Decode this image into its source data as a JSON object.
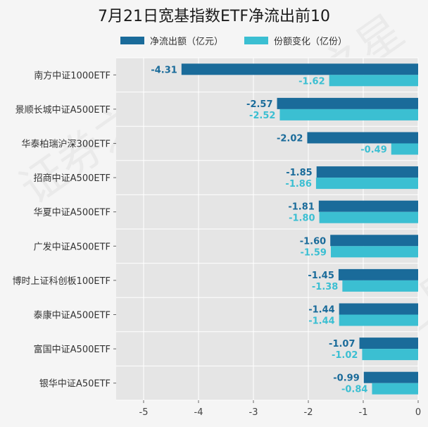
{
  "chart_data": {
    "type": "bar",
    "orientation": "horizontal",
    "title": "7月21日宽基指数ETF净流出前10",
    "categories": [
      "南方中证1000ETF",
      "景顺长城中证A500ETF",
      "华泰柏瑞沪深300ETF",
      "招商中证A500ETF",
      "华夏中证A500ETF",
      "广发中证A500ETF",
      "博时上证科创板100ETF",
      "泰康中证A500ETF",
      "富国中证A500ETF",
      "银华中证A50ETF"
    ],
    "series": [
      {
        "name": "净流出额（亿元）",
        "color": "#1a6b9a",
        "values": [
          -4.31,
          -2.57,
          -2.02,
          -1.85,
          -1.81,
          -1.6,
          -1.45,
          -1.44,
          -1.07,
          -0.99
        ],
        "labels": [
          "-4.31",
          "-2.57",
          "-2.02",
          "-1.85",
          "-1.81",
          "-1.60",
          "-1.45",
          "-1.44",
          "-1.07",
          "-0.99"
        ]
      },
      {
        "name": "份额变化（亿份）",
        "color": "#3bbfd2",
        "values": [
          -1.62,
          -2.52,
          -0.49,
          -1.86,
          -1.8,
          -1.59,
          -1.38,
          -1.44,
          -1.02,
          -0.84
        ],
        "labels": [
          "-1.62",
          "-2.52",
          "-0.49",
          "-1.86",
          "-1.80",
          "-1.59",
          "-1.38",
          "-1.44",
          "-1.02",
          "-0.84"
        ]
      }
    ],
    "xlim": [
      -5.5,
      0
    ],
    "xticks": [
      -5,
      -4,
      -3,
      -2,
      -1,
      0
    ],
    "xtick_labels": [
      "-5",
      "-4",
      "-3",
      "-2",
      "-1",
      "0"
    ],
    "grid": true,
    "legend_position": "top"
  },
  "watermark": "证券之星"
}
